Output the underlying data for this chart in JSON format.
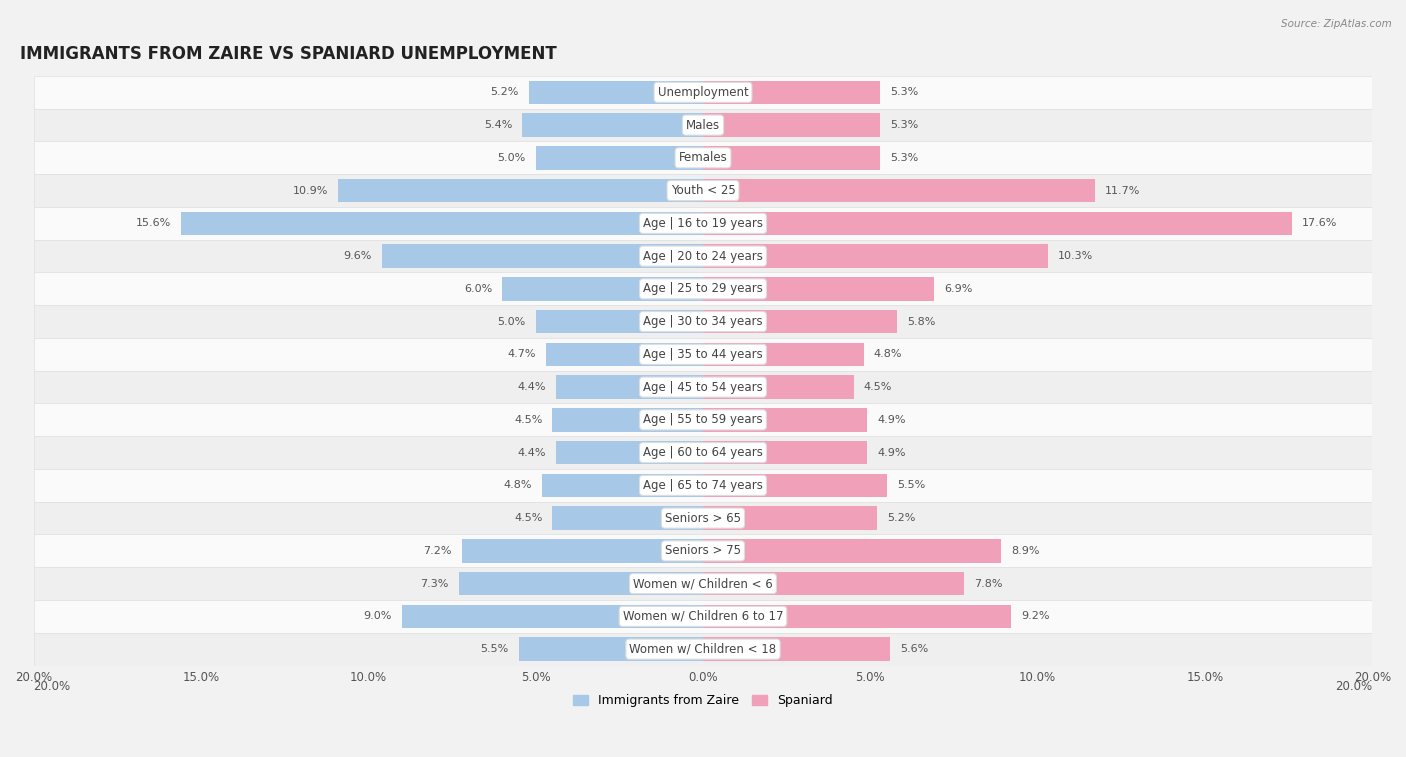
{
  "title": "IMMIGRANTS FROM ZAIRE VS SPANIARD UNEMPLOYMENT",
  "source": "Source: ZipAtlas.com",
  "categories": [
    "Unemployment",
    "Males",
    "Females",
    "Youth < 25",
    "Age | 16 to 19 years",
    "Age | 20 to 24 years",
    "Age | 25 to 29 years",
    "Age | 30 to 34 years",
    "Age | 35 to 44 years",
    "Age | 45 to 54 years",
    "Age | 55 to 59 years",
    "Age | 60 to 64 years",
    "Age | 65 to 74 years",
    "Seniors > 65",
    "Seniors > 75",
    "Women w/ Children < 6",
    "Women w/ Children 6 to 17",
    "Women w/ Children < 18"
  ],
  "left_values": [
    5.2,
    5.4,
    5.0,
    10.9,
    15.6,
    9.6,
    6.0,
    5.0,
    4.7,
    4.4,
    4.5,
    4.4,
    4.8,
    4.5,
    7.2,
    7.3,
    9.0,
    5.5
  ],
  "right_values": [
    5.3,
    5.3,
    5.3,
    11.7,
    17.6,
    10.3,
    6.9,
    5.8,
    4.8,
    4.5,
    4.9,
    4.9,
    5.5,
    5.2,
    8.9,
    7.8,
    9.2,
    5.6
  ],
  "left_color": "#a8c8e8",
  "right_color": "#f0a0b8",
  "left_label": "Immigrants from Zaire",
  "right_label": "Spaniard",
  "axis_max": 20.0,
  "background_color": "#f2f2f2",
  "row_bg_light": "#fafafa",
  "row_bg_dark": "#efefef",
  "row_border": "#e0e0e0",
  "title_fontsize": 12,
  "label_fontsize": 8.5,
  "value_fontsize": 8.0,
  "axis_label_fontsize": 8.5
}
